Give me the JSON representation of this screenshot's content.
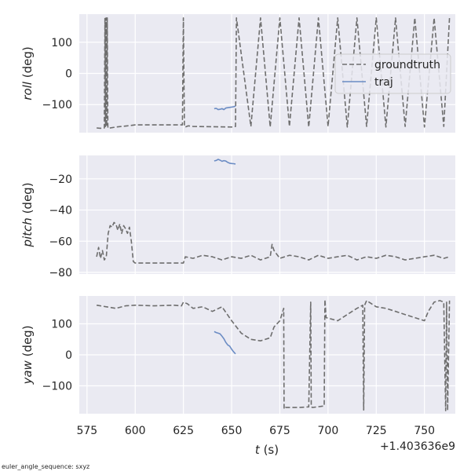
{
  "chart_data": {
    "type": "line",
    "xlabel_var": "t",
    "xlabel_unit": " (s)",
    "x_offset_label": "+1.403636e9",
    "xlim": [
      571,
      766
    ],
    "xticks": [
      575,
      600,
      625,
      650,
      675,
      700,
      725,
      750
    ],
    "legend": {
      "placement": "upper-right of roll panel",
      "entries": [
        {
          "name": "groundtruth",
          "style": "dashed",
          "color": "#6e6e6e"
        },
        {
          "name": "traj",
          "style": "solid",
          "color": "#6b8cc4"
        }
      ]
    },
    "footnote": "euler_angle_sequence: sxyz",
    "panels": [
      {
        "id": "roll",
        "ylabel_var": "roll",
        "ylabel_unit": " (deg)",
        "ylim": [
          -190,
          190
        ],
        "yticks": [
          100,
          0,
          -100
        ],
        "series": [
          {
            "name": "groundtruth",
            "x": [
              580,
              582,
              584,
              584.3,
              584.6,
              584.9,
              585.2,
              585.5,
              585.8,
              586,
              590,
              596,
              600,
              610,
              624.5,
              625,
              625.5,
              626,
              627.5,
              630,
              650,
              652,
              652.5,
              660,
              665,
              670,
              675,
              680,
              685,
              690,
              695,
              700,
              705,
              710,
              715,
              720,
              725,
              730,
              735,
              740,
              745,
              750,
              755,
              760,
              763
            ],
            "y": [
              -175,
              -176,
              -175,
              178,
              -170,
              178,
              -170,
              178,
              -172,
              -176,
              -172,
              -168,
              -165,
              -165,
              -165,
              178,
              -170,
              -172,
              -168,
              -170,
              -172,
              -170,
              178,
              -170,
              178,
              -172,
              178,
              -170,
              178,
              -172,
              178,
              -170,
              178,
              -172,
              178,
              -170,
              178,
              -172,
              178,
              -170,
              178,
              -172,
              178,
              -170,
              178
            ]
          },
          {
            "name": "traj",
            "x": [
              641,
              642,
              643,
              644,
              645,
              646,
              647,
              648,
              649,
              650,
              651,
              652
            ],
            "y": [
              -113,
              -112,
              -116,
              -115,
              -113,
              -116,
              -111,
              -110,
              -109,
              -108,
              -107,
              -105
            ]
          }
        ]
      },
      {
        "id": "pitch",
        "ylabel_var": "pitch",
        "ylabel_unit": " (deg)",
        "ylim": [
          -81,
          -5
        ],
        "yticks": [
          -20,
          -40,
          -60,
          -80
        ],
        "series": [
          {
            "name": "groundtruth",
            "x": [
              580,
              581,
              582,
              583,
              584,
              585,
              586,
              587,
              588,
              589,
              590,
              591,
              592,
              593,
              594,
              595,
              596,
              597,
              598,
              599,
              600,
              605,
              610,
              615,
              620,
              625,
              626,
              630,
              635,
              640,
              645,
              650,
              655,
              660,
              665,
              670,
              671,
              672,
              675,
              680,
              685,
              690,
              695,
              700,
              705,
              710,
              715,
              720,
              725,
              730,
              735,
              740,
              745,
              750,
              755,
              760,
              763
            ],
            "y": [
              -70,
              -64,
              -71,
              -66,
              -72,
              -70,
              -55,
              -50,
              -51,
              -48,
              -49,
              -53,
              -49,
              -55,
              -50,
              -52,
              -55,
              -51,
              -60,
              -73,
              -74,
              -74,
              -74,
              -74,
              -74,
              -74,
              -70,
              -71,
              -69,
              -70,
              -72,
              -70,
              -71,
              -69,
              -72,
              -70,
              -62,
              -66,
              -71,
              -69,
              -70,
              -72,
              -69,
              -71,
              -70,
              -69,
              -72,
              -70,
              -71,
              -69,
              -70,
              -72,
              -71,
              -70,
              -69,
              -71,
              -70
            ]
          },
          {
            "name": "traj",
            "x": [
              641,
              642,
              643,
              644,
              645,
              646,
              647,
              648,
              649,
              650,
              651,
              652
            ],
            "y": [
              -8.5,
              -8.2,
              -7.5,
              -8,
              -8.8,
              -8.3,
              -8.6,
              -9.5,
              -10,
              -10.2,
              -10.3,
              -10.5
            ]
          }
        ]
      },
      {
        "id": "yaw",
        "ylabel_var": "yaw",
        "ylabel_unit": " (deg)",
        "ylim": [
          -190,
          190
        ],
        "yticks": [
          100,
          0,
          -100
        ],
        "series": [
          {
            "name": "groundtruth",
            "x": [
              580,
              585,
              590,
              595,
              600,
              610,
              620,
              624,
              625,
              627,
              630,
              635,
              640,
              645,
              650,
              655,
              660,
              665,
              670,
              672,
              675,
              677,
              677.2,
              678,
              685,
              690,
              691,
              691.3,
              692,
              698,
              698.4,
              699,
              705,
              710,
              715,
              718,
              718.5,
              719,
              720,
              725,
              730,
              735,
              740,
              745,
              750,
              752,
              755,
              758,
              760,
              761,
              761.5,
              762,
              763
            ],
            "y": [
              160,
              155,
              150,
              158,
              160,
              158,
              160,
              158,
              170,
              165,
              150,
              155,
              140,
              155,
              110,
              70,
              50,
              45,
              55,
              90,
              110,
              150,
              -175,
              -170,
              -170,
              -168,
              170,
              -168,
              -170,
              -165,
              178,
              120,
              110,
              130,
              150,
              160,
              -178,
              160,
              175,
              155,
              150,
              140,
              130,
              120,
              110,
              140,
              170,
              175,
              170,
              -180,
              170,
              -180,
              175
            ]
          },
          {
            "name": "traj",
            "x": [
              641,
              642,
              643,
              644,
              645,
              646,
              647,
              648,
              649,
              650,
              651,
              652
            ],
            "y": [
              75,
              72,
              70,
              68,
              60,
              52,
              40,
              32,
              28,
              18,
              10,
              3
            ]
          }
        ]
      }
    ]
  }
}
